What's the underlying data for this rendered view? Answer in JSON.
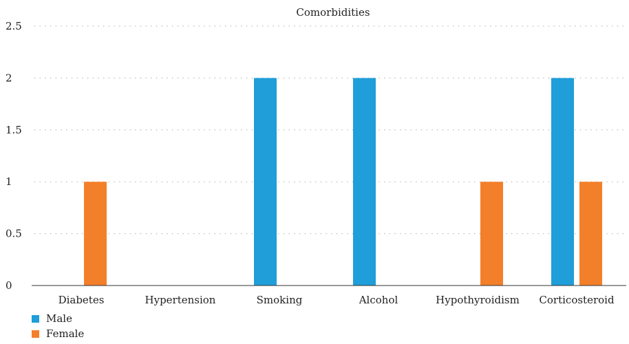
{
  "chart_data": {
    "type": "bar",
    "title": "Comorbidities",
    "xlabel": "",
    "ylabel": "",
    "categories": [
      "Diabetes",
      "Hypertension",
      "Smoking",
      "Alcohol",
      "Hypothyroidism",
      "Corticosteroid"
    ],
    "series": [
      {
        "name": "Male",
        "color": "#1f9ed9",
        "values": [
          0,
          0,
          2,
          2,
          0,
          2
        ]
      },
      {
        "name": "Female",
        "color": "#f47f2a",
        "values": [
          1,
          0,
          0,
          0,
          1,
          1
        ]
      }
    ],
    "ylim": [
      0,
      2.5
    ],
    "yticks": [
      "0",
      "0.5",
      "1",
      "1.5",
      "2",
      "2.5"
    ],
    "grid": true,
    "legend_position": "bottom-left"
  }
}
